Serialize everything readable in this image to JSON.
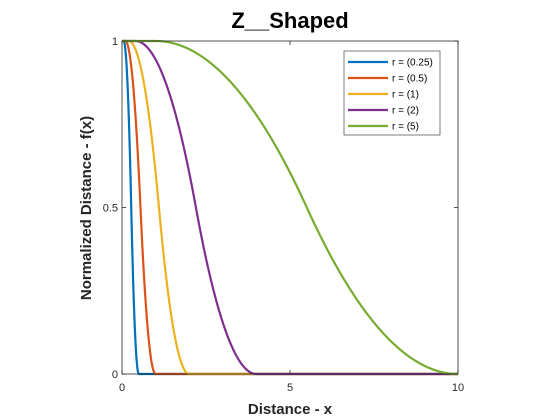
{
  "chart_data": {
    "type": "line",
    "title": "Z__Shaped",
    "xlabel": "Distance - x",
    "ylabel": "Normalized Distance - f(x)",
    "xlim": [
      0,
      10
    ],
    "ylim": [
      0,
      1
    ],
    "xticks": [
      0,
      5,
      10
    ],
    "yticks": [
      0,
      0.5,
      1
    ],
    "xtick_labels": [
      "0",
      "5",
      "10"
    ],
    "ytick_labels": [
      "0",
      "0.5",
      "1"
    ],
    "grid": false,
    "legend_position": "top-right",
    "function": "z-shaped spline: f(x)=1 for x<=0.2r, falls to 0 at x=2r",
    "series": [
      {
        "name": "r = (0.25)",
        "r": 0.25,
        "color": "#0072BD"
      },
      {
        "name": "r = (0.5)",
        "r": 0.5,
        "color": "#D95319"
      },
      {
        "name": "r = (1)",
        "r": 1,
        "color": "#EDB120"
      },
      {
        "name": "r = (2)",
        "r": 2,
        "color": "#7E2F8E"
      },
      {
        "name": "r = (5)",
        "r": 5,
        "color": "#77AC30"
      }
    ]
  }
}
